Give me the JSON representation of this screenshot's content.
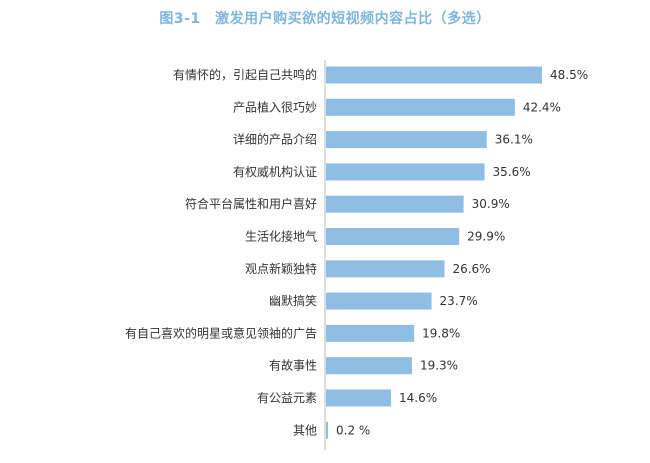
{
  "chart_data": {
    "type": "bar",
    "orientation": "horizontal",
    "title": "图3-1　激发用户购买欲的短视频内容占比（多选）",
    "categories": [
      "有情怀的，引起自己共鸣的",
      "产品植入很巧妙",
      "详细的产品介绍",
      "有权威机构认证",
      "符合平台属性和用户喜好",
      "生活化接地气",
      "观点新颖独特",
      "幽默搞笑",
      "有自己喜欢的明星或意见领袖的广告",
      "有故事性",
      "有公益元素",
      "其他"
    ],
    "values": [
      48.5,
      42.4,
      36.1,
      35.6,
      30.9,
      29.9,
      26.6,
      23.7,
      19.8,
      19.3,
      14.6,
      0.2
    ],
    "value_labels": [
      "48.5%",
      "42.4%",
      "36.1%",
      "35.6%",
      "30.9%",
      "29.9%",
      "26.6%",
      "23.7%",
      "19.8%",
      "19.3%",
      "14.6%",
      "0.2 %"
    ],
    "bar_color": "#8fbde3",
    "axis_color": "#bbbbbb",
    "title_color": "#7fb6dd",
    "grid": false,
    "legend": "none"
  }
}
